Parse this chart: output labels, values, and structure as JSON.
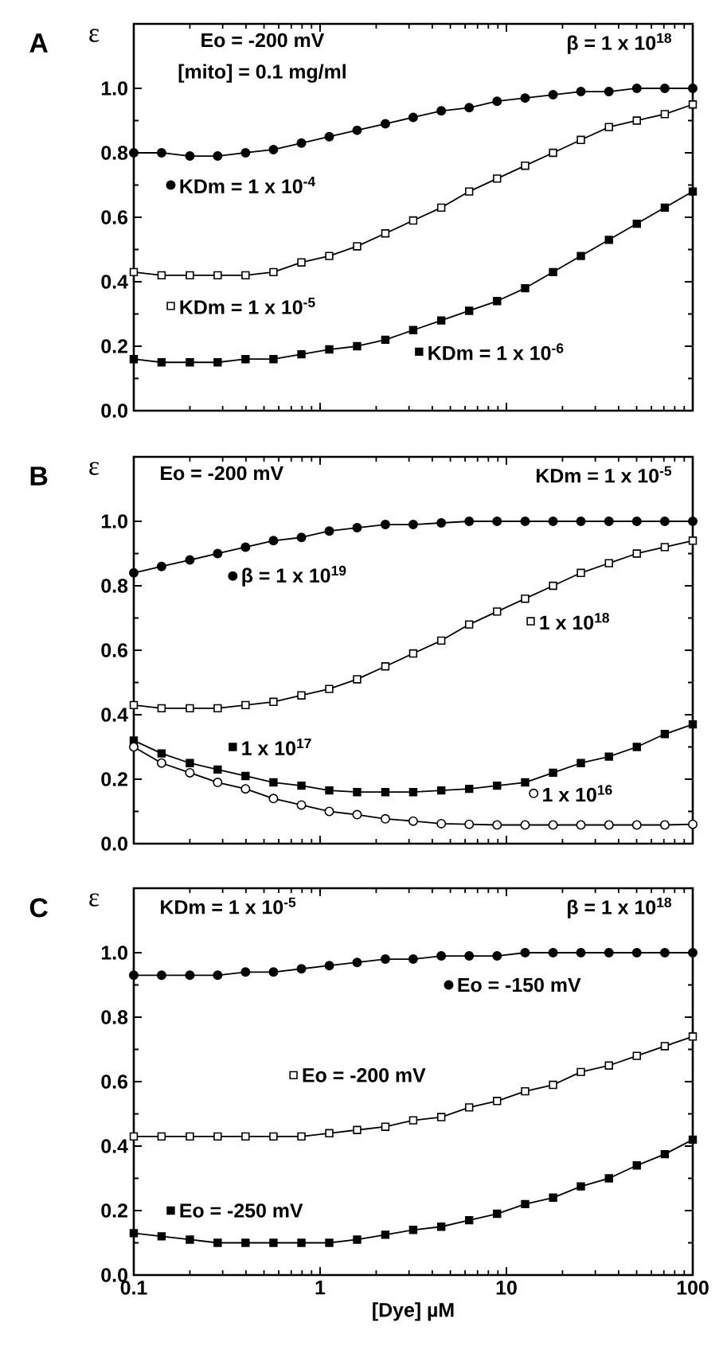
{
  "chart_data": [
    {
      "type": "line",
      "title": "A",
      "ylabel": "ε",
      "annotations": [
        "Eo = -200 mV",
        "[mito] = 0.1 mg/ml",
        "β = 1 x 10$^{18}$"
      ],
      "log": "x",
      "tick_labels": "y",
      "line_style": "solid",
      "legend": "center",
      "x": [
        0.1,
        0.141,
        0.2,
        0.282,
        0.398,
        0.562,
        0.794,
        1.12,
        1.58,
        2.24,
        3.16,
        4.47,
        6.31,
        8.91,
        12.6,
        17.8,
        25.1,
        35.5,
        50.1,
        70.8,
        100
      ],
      "xlim": [
        0.1,
        100
      ],
      "xticks": [
        {
          "value": 0.1,
          "label": null
        },
        {
          "value": 1,
          "label": null
        },
        {
          "value": 10,
          "label": null
        },
        {
          "value": 100,
          "label": null
        }
      ],
      "ylim": [
        0,
        1.2
      ],
      "yticks": [
        {
          "value": 0,
          "label": "0.0"
        },
        {
          "value": 0.2,
          "label": "0.2"
        },
        {
          "value": 0.4,
          "label": "0.4"
        },
        {
          "value": 0.6,
          "label": "0.6"
        },
        {
          "value": 0.8,
          "label": "0.8"
        },
        {
          "value": 1,
          "label": "1.0"
        }
      ],
      "series": [
        {
          "name": "KDm = 1 x 10$^{-4}$",
          "color": "#000000",
          "marker": "circle",
          "values": [
            0.8,
            0.8,
            0.79,
            0.79,
            0.8,
            0.81,
            0.83,
            0.85,
            0.87,
            0.89,
            0.91,
            0.93,
            0.94,
            0.96,
            0.97,
            0.98,
            0.99,
            0.99,
            1.0,
            1.0,
            1.0
          ]
        },
        {
          "name": "KDm = 1 x 10$^{-5}$",
          "color": "#000000",
          "marker": "square",
          "colors": [
            "#ffffff",
            "#ffffff",
            "#ffffff",
            "#ffffff",
            "#ffffff",
            "#ffffff",
            "#ffffff",
            "#ffffff",
            "#ffffff",
            "#ffffff",
            "#ffffff",
            "#ffffff",
            "#ffffff",
            "#ffffff",
            "#ffffff",
            "#ffffff",
            "#ffffff",
            "#ffffff",
            "#ffffff",
            "#ffffff",
            "#ffffff"
          ],
          "values": [
            0.43,
            0.42,
            0.42,
            0.42,
            0.42,
            0.43,
            0.46,
            0.48,
            0.51,
            0.55,
            0.59,
            0.63,
            0.68,
            0.72,
            0.76,
            0.8,
            0.84,
            0.88,
            0.9,
            0.92,
            0.95
          ]
        },
        {
          "name": "KDm = 1 x 10$^{-6}$",
          "color": "#000000",
          "marker": "square",
          "values": [
            0.16,
            0.15,
            0.15,
            0.15,
            0.16,
            0.16,
            0.175,
            0.19,
            0.2,
            0.22,
            0.25,
            0.28,
            0.31,
            0.34,
            0.38,
            0.43,
            0.48,
            0.53,
            0.58,
            0.63,
            0.68
          ]
        }
      ]
    },
    {
      "type": "line",
      "title": "B",
      "ylabel": "ε",
      "annotations": [
        "Eo = -200 mV",
        "KDm = 1 x 10$^{-5}$"
      ],
      "log": "x",
      "tick_labels": "y",
      "line_style": "solid",
      "legend": "center",
      "x": [
        0.1,
        0.141,
        0.2,
        0.282,
        0.398,
        0.562,
        0.794,
        1.12,
        1.58,
        2.24,
        3.16,
        4.47,
        6.31,
        8.91,
        12.6,
        17.8,
        25.1,
        35.5,
        50.1,
        70.8,
        100
      ],
      "xlim": [
        0.1,
        100
      ],
      "xticks": [
        {
          "value": 0.1,
          "label": null
        },
        {
          "value": 1,
          "label": null
        },
        {
          "value": 10,
          "label": null
        },
        {
          "value": 100,
          "label": null
        }
      ],
      "ylim": [
        0,
        1.2
      ],
      "yticks": [
        {
          "value": 0,
          "label": "0.0"
        },
        {
          "value": 0.2,
          "label": "0.2"
        },
        {
          "value": 0.4,
          "label": "0.4"
        },
        {
          "value": 0.6,
          "label": "0.6"
        },
        {
          "value": 0.8,
          "label": "0.8"
        },
        {
          "value": 1,
          "label": "1.0"
        }
      ],
      "series": [
        {
          "name": "β = 1 x 10$^{19}$",
          "color": "#000000",
          "marker": "circle",
          "values": [
            0.84,
            0.86,
            0.88,
            0.9,
            0.92,
            0.94,
            0.95,
            0.97,
            0.98,
            0.99,
            0.99,
            0.995,
            1.0,
            1.0,
            1.0,
            1.0,
            1.0,
            1.0,
            1.0,
            1.0,
            1.0
          ]
        },
        {
          "name": "1 x 10$^{18}$",
          "color": "#000000",
          "marker": "square",
          "colors": [
            "#ffffff",
            "#ffffff",
            "#ffffff",
            "#ffffff",
            "#ffffff",
            "#ffffff",
            "#ffffff",
            "#ffffff",
            "#ffffff",
            "#ffffff",
            "#ffffff",
            "#ffffff",
            "#ffffff",
            "#ffffff",
            "#ffffff",
            "#ffffff",
            "#ffffff",
            "#ffffff",
            "#ffffff",
            "#ffffff",
            "#ffffff"
          ],
          "values": [
            0.43,
            0.42,
            0.42,
            0.42,
            0.43,
            0.44,
            0.46,
            0.48,
            0.51,
            0.55,
            0.59,
            0.63,
            0.68,
            0.72,
            0.76,
            0.8,
            0.84,
            0.87,
            0.9,
            0.92,
            0.94
          ]
        },
        {
          "name": "1 x 10$^{17}$",
          "color": "#000000",
          "marker": "square",
          "values": [
            0.32,
            0.28,
            0.25,
            0.23,
            0.21,
            0.19,
            0.18,
            0.165,
            0.16,
            0.16,
            0.16,
            0.165,
            0.17,
            0.18,
            0.19,
            0.22,
            0.25,
            0.27,
            0.3,
            0.34,
            0.37
          ]
        },
        {
          "name": "1 x 10$^{16}$",
          "color": "#000000",
          "marker": "circle",
          "colors": [
            "#ffffff",
            "#ffffff",
            "#ffffff",
            "#ffffff",
            "#ffffff",
            "#ffffff",
            "#ffffff",
            "#ffffff",
            "#ffffff",
            "#ffffff",
            "#ffffff",
            "#ffffff",
            "#ffffff",
            "#ffffff",
            "#ffffff",
            "#ffffff",
            "#ffffff",
            "#ffffff",
            "#ffffff",
            "#ffffff",
            "#ffffff"
          ],
          "values": [
            0.3,
            0.25,
            0.22,
            0.19,
            0.17,
            0.14,
            0.12,
            0.1,
            0.09,
            0.077,
            0.07,
            0.062,
            0.06,
            0.058,
            0.058,
            0.058,
            0.058,
            0.058,
            0.058,
            0.058,
            0.06
          ]
        }
      ]
    },
    {
      "type": "line",
      "title": "C",
      "ylabel": "ε",
      "xlabel": "[Dye]  µM",
      "annotations": [
        "KDm = 1 x 10$^{-5}$",
        "β = 1 x 10$^{18}$"
      ],
      "log": "x",
      "line_style": "solid",
      "legend": "center",
      "x": [
        0.1,
        0.141,
        0.2,
        0.282,
        0.398,
        0.562,
        0.794,
        1.12,
        1.58,
        2.24,
        3.16,
        4.47,
        6.31,
        8.91,
        12.6,
        17.8,
        25.1,
        35.5,
        50.1,
        70.8,
        100
      ],
      "xlim": [
        0.1,
        100
      ],
      "xticks": [
        {
          "value": 0.1,
          "label": "0.1"
        },
        {
          "value": 1,
          "label": "1"
        },
        {
          "value": 10,
          "label": "10"
        },
        {
          "value": 100,
          "label": "100"
        }
      ],
      "ylim": [
        0,
        1.2
      ],
      "yticks": [
        {
          "value": 0,
          "label": "0.0"
        },
        {
          "value": 0.2,
          "label": "0.2"
        },
        {
          "value": 0.4,
          "label": "0.4"
        },
        {
          "value": 0.6,
          "label": "0.6"
        },
        {
          "value": 0.8,
          "label": "0.8"
        },
        {
          "value": 1,
          "label": "1.0"
        }
      ],
      "series": [
        {
          "name": "Eo = -150 mV",
          "color": "#000000",
          "marker": "circle",
          "values": [
            0.93,
            0.93,
            0.93,
            0.93,
            0.94,
            0.94,
            0.95,
            0.96,
            0.97,
            0.98,
            0.98,
            0.99,
            0.99,
            0.99,
            1.0,
            1.0,
            1.0,
            1.0,
            1.0,
            1.0,
            1.0
          ]
        },
        {
          "name": "Eo = -200 mV",
          "color": "#000000",
          "marker": "square",
          "colors": [
            "#ffffff",
            "#ffffff",
            "#ffffff",
            "#ffffff",
            "#ffffff",
            "#ffffff",
            "#ffffff",
            "#ffffff",
            "#ffffff",
            "#ffffff",
            "#ffffff",
            "#ffffff",
            "#ffffff",
            "#ffffff",
            "#ffffff",
            "#ffffff",
            "#ffffff",
            "#ffffff",
            "#ffffff",
            "#ffffff",
            "#ffffff"
          ],
          "values": [
            0.43,
            0.43,
            0.43,
            0.43,
            0.43,
            0.43,
            0.43,
            0.44,
            0.45,
            0.46,
            0.48,
            0.49,
            0.52,
            0.54,
            0.57,
            0.59,
            0.63,
            0.65,
            0.68,
            0.71,
            0.74
          ]
        },
        {
          "name": "Eo = -250 mV",
          "color": "#000000",
          "marker": "square",
          "values": [
            0.13,
            0.12,
            0.11,
            0.1,
            0.1,
            0.1,
            0.1,
            0.1,
            0.11,
            0.125,
            0.14,
            0.15,
            0.17,
            0.19,
            0.22,
            0.24,
            0.275,
            0.3,
            0.34,
            0.375,
            0.42
          ]
        }
      ]
    }
  ]
}
